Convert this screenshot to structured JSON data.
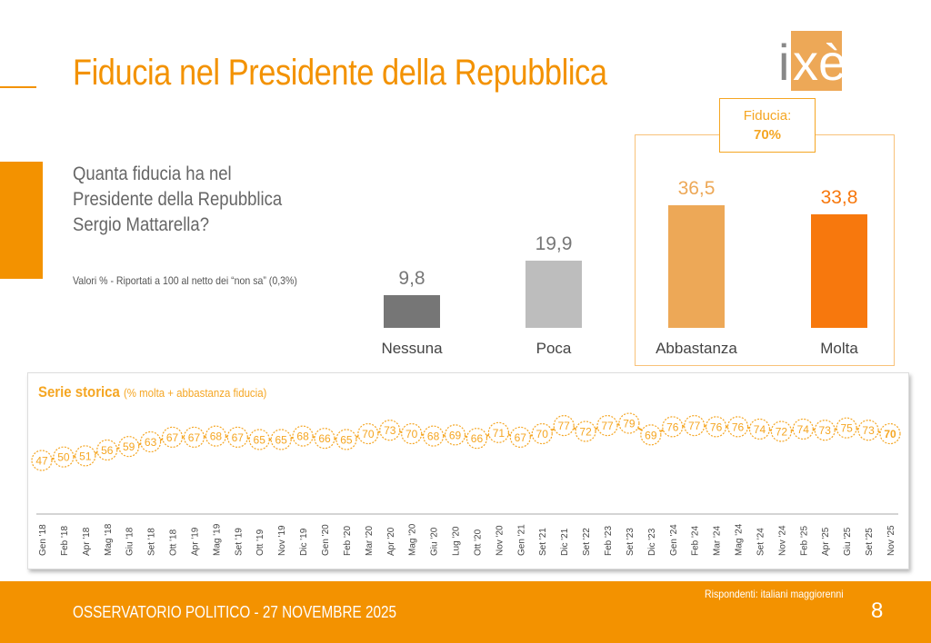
{
  "header": {
    "title": "Fiducia nel Presidente della Repubblica",
    "logo_text": "ixè"
  },
  "question": {
    "lines": [
      "Quanta fiducia ha nel",
      "Presidente della Repubblica",
      "Sergio Mattarella?"
    ],
    "note": "Valori % - Riportati a 100 al netto dei “non sa” (0,3%)"
  },
  "fiducia_box": {
    "label": "Fiducia:",
    "value": "70%"
  },
  "chart_data": [
    {
      "type": "bar",
      "categories": [
        "Nessuna",
        "Poca",
        "Abbastanza",
        "Molta"
      ],
      "values": [
        9.8,
        19.9,
        36.5,
        33.8
      ],
      "value_labels": [
        "9,8",
        "19,9",
        "36,5",
        "33,8"
      ],
      "colors": [
        "#767676",
        "#bdbdbd",
        "#eda857",
        "#f7780d"
      ]
    },
    {
      "type": "line",
      "title": "Serie storica",
      "subtitle": "(% molta + abbastanza fiducia)",
      "color": "#f5a623",
      "categories": [
        "Gen '18",
        "Feb '18",
        "Apr '18",
        "Mag '18",
        "Giu '18",
        "Set '18",
        "Ott '18",
        "Apr '19",
        "Mag '19",
        "Set '19",
        "Ott '19",
        "Nov '19",
        "Dic '19",
        "Gen '20",
        "Feb '20",
        "Mar '20",
        "Apr '20",
        "Mag '20",
        "Giu '20",
        "Lug '20",
        "Ott '20",
        "Nov '20",
        "Gen '21",
        "Set '21",
        "Dic '21",
        "Set '22",
        "Feb '23",
        "Set '23",
        "Dic '23",
        "Gen '24",
        "Feb '24",
        "Mar '24",
        "Mag '24",
        "Set '24",
        "Nov '24",
        "Feb '25",
        "Apr '25",
        "Giu '25",
        "Set '25",
        "Nov '25"
      ],
      "values": [
        47,
        50,
        51,
        56,
        59,
        63,
        67,
        67,
        68,
        67,
        65,
        65,
        68,
        66,
        65,
        70,
        73,
        70,
        68,
        69,
        66,
        71,
        67,
        70,
        77,
        72,
        77,
        79,
        69,
        76,
        77,
        76,
        76,
        74,
        72,
        74,
        73,
        75,
        73,
        70
      ]
    }
  ],
  "footer": {
    "text": "OSSERVATORIO POLITICO - 27 NOVEMBRE 2025",
    "respondents": "Rispondenti: italiani maggiorenni",
    "page": "8"
  }
}
